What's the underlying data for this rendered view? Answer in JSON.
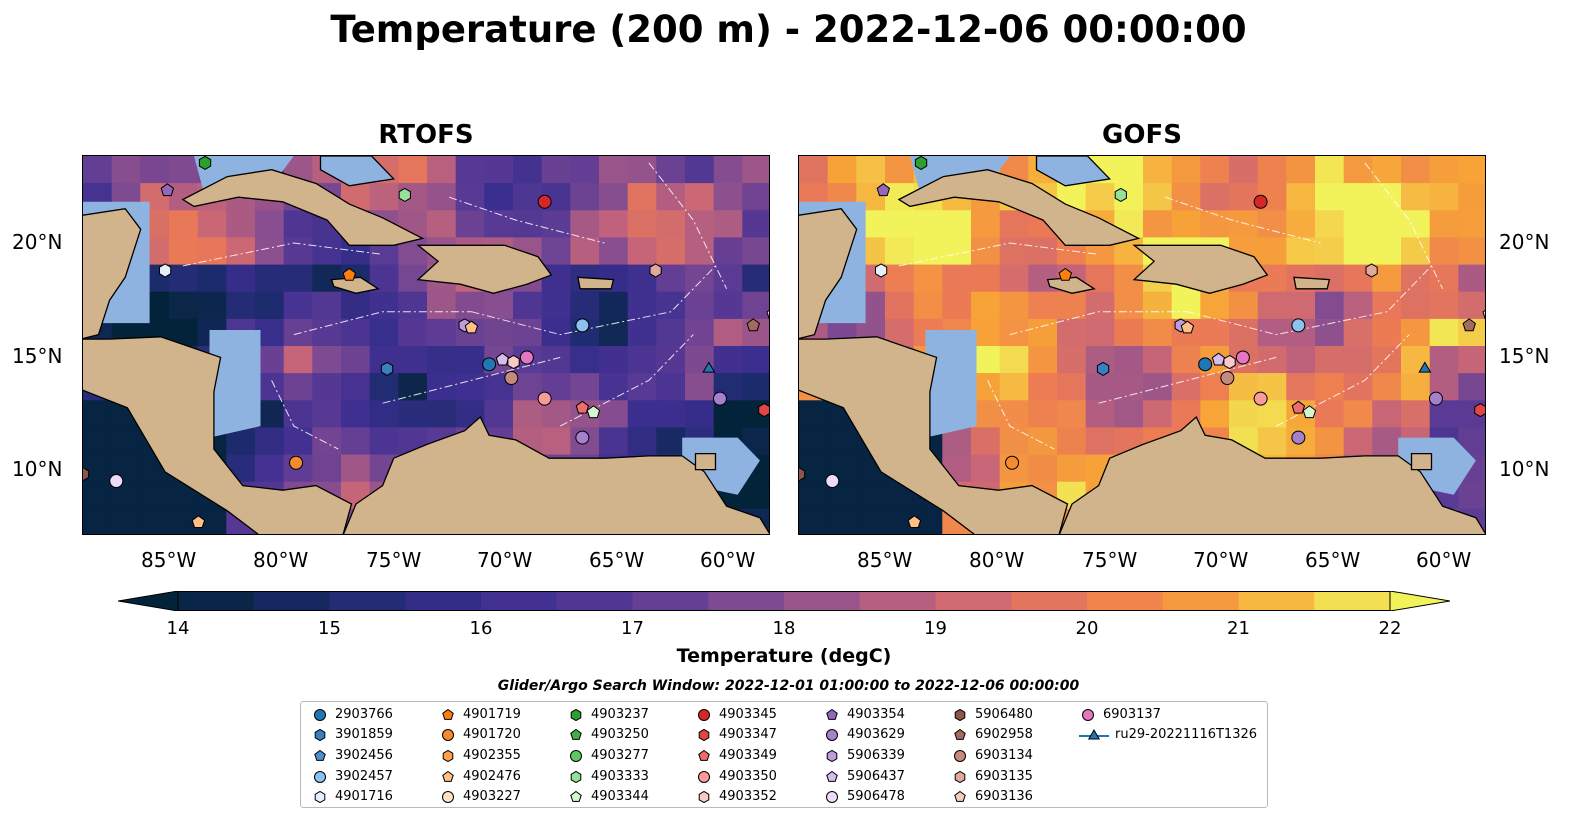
{
  "title": "Temperature (200 m) - 2022-12-06 00:00:00",
  "panels": [
    {
      "name": "RTOFS",
      "warmth": 0.35
    },
    {
      "name": "GOFS",
      "warmth": 0.75
    }
  ],
  "axes": {
    "lon_ticks": [
      "85°W",
      "80°W",
      "75°W",
      "70°W",
      "65°W",
      "60°W"
    ],
    "lat_ticks": [
      "20°N",
      "15°N",
      "10°N"
    ],
    "lon_range": [
      -89.5,
      -58.5
    ],
    "lat_range": [
      7.2,
      23.8
    ]
  },
  "colorbar": {
    "label": "Temperature (degC)",
    "ticks": [
      "14",
      "15",
      "16",
      "17",
      "18",
      "19",
      "20",
      "21",
      "22"
    ],
    "min": 14,
    "max": 22,
    "step": 0.5,
    "colormap": "thermal"
  },
  "search_window": "Glider/Argo Search Window: 2022-12-01 01:00:00 to 2022-12-06 00:00:00",
  "legend": [
    {
      "label": "2903766",
      "color": "#1f77b4",
      "marker": "circle"
    },
    {
      "label": "3901859",
      "color": "#3a7fbf",
      "marker": "hexagon"
    },
    {
      "label": "3902456",
      "color": "#4d8fd0",
      "marker": "pentagon"
    },
    {
      "label": "3902457",
      "color": "#8cc2ee",
      "marker": "circle"
    },
    {
      "label": "4901716",
      "color": "#e6f0fb",
      "marker": "hexagon"
    },
    {
      "label": "4901719",
      "color": "#ff7f0e",
      "marker": "pentagon"
    },
    {
      "label": "4901720",
      "color": "#f58b2e",
      "marker": "circle"
    },
    {
      "label": "4902355",
      "color": "#ffa04c",
      "marker": "hexagon"
    },
    {
      "label": "4902476",
      "color": "#ffbf86",
      "marker": "pentagon"
    },
    {
      "label": "4903227",
      "color": "#ffe1c6",
      "marker": "circle"
    },
    {
      "label": "4903237",
      "color": "#2ca02c",
      "marker": "hexagon"
    },
    {
      "label": "4903250",
      "color": "#3fb13f",
      "marker": "pentagon"
    },
    {
      "label": "4903277",
      "color": "#5fc95f",
      "marker": "circle"
    },
    {
      "label": "4903333",
      "color": "#97e097",
      "marker": "hexagon"
    },
    {
      "label": "4903344",
      "color": "#d3f5cf",
      "marker": "pentagon"
    },
    {
      "label": "4903345",
      "color": "#d62728",
      "marker": "circle"
    },
    {
      "label": "4903347",
      "color": "#e34546",
      "marker": "hexagon"
    },
    {
      "label": "4903349",
      "color": "#ef6d6d",
      "marker": "pentagon"
    },
    {
      "label": "4903350",
      "color": "#f79b9b",
      "marker": "circle"
    },
    {
      "label": "4903352",
      "color": "#fcc9c9",
      "marker": "hexagon"
    },
    {
      "label": "4903354",
      "color": "#9467bd",
      "marker": "pentagon"
    },
    {
      "label": "4903629",
      "color": "#a680cc",
      "marker": "circle"
    },
    {
      "label": "5906339",
      "color": "#bd9ddc",
      "marker": "hexagon"
    },
    {
      "label": "5906437",
      "color": "#d4bdee",
      "marker": "pentagon"
    },
    {
      "label": "5906478",
      "color": "#ecdcfa",
      "marker": "circle"
    },
    {
      "label": "5906480",
      "color": "#8c564b",
      "marker": "hexagon"
    },
    {
      "label": "6902958",
      "color": "#a36b5f",
      "marker": "pentagon"
    },
    {
      "label": "6903134",
      "color": "#c48a7c",
      "marker": "circle"
    },
    {
      "label": "6903135",
      "color": "#e0aa9a",
      "marker": "hexagon"
    },
    {
      "label": "6903136",
      "color": "#f4cdbd",
      "marker": "pentagon"
    },
    {
      "label": "6903137",
      "color": "#e377c2",
      "marker": "circle"
    },
    {
      "label": "ru29-20221116T1326",
      "color": "#1f77b4",
      "marker": "triangle-line"
    }
  ],
  "floats": [
    {
      "id": "4903237",
      "lon": -84.0,
      "lat": 23.5
    },
    {
      "id": "4903354",
      "lon": -85.7,
      "lat": 22.3
    },
    {
      "id": "4903333",
      "lon": -75.0,
      "lat": 22.1
    },
    {
      "id": "4903345",
      "lon": -68.7,
      "lat": 21.8
    },
    {
      "id": "4901716",
      "lon": -85.8,
      "lat": 18.8
    },
    {
      "id": "4901719",
      "lon": -77.5,
      "lat": 18.6
    },
    {
      "id": "6903135",
      "lon": -63.7,
      "lat": 18.8
    },
    {
      "id": "6902958",
      "lon": -59.3,
      "lat": 16.4
    },
    {
      "id": "6903136",
      "lon": -58.4,
      "lat": 16.9
    },
    {
      "id": "5906339",
      "lon": -72.3,
      "lat": 16.4
    },
    {
      "id": "4902476",
      "lon": -72.0,
      "lat": 16.3
    },
    {
      "id": "3902457",
      "lon": -67.0,
      "lat": 16.4
    },
    {
      "id": "3901859",
      "lon": -75.8,
      "lat": 14.5
    },
    {
      "id": "2903766",
      "lon": -71.2,
      "lat": 14.7
    },
    {
      "id": "5906437",
      "lon": -70.6,
      "lat": 14.9
    },
    {
      "id": "4903352",
      "lon": -70.1,
      "lat": 14.8
    },
    {
      "id": "6903134",
      "lon": -70.2,
      "lat": 14.1
    },
    {
      "id": "6903137",
      "lon": -69.5,
      "lat": 15.0
    },
    {
      "id": "4903350",
      "lon": -68.7,
      "lat": 13.2
    },
    {
      "id": "4903349",
      "lon": -67.0,
      "lat": 12.8
    },
    {
      "id": "4903344",
      "lon": -66.5,
      "lat": 12.6
    },
    {
      "id": "4903629",
      "lon": -67.0,
      "lat": 11.5
    },
    {
      "id": "4903629",
      "lon": -60.8,
      "lat": 13.2
    },
    {
      "id": "4903347",
      "lon": -58.8,
      "lat": 12.7
    },
    {
      "id": "4901720",
      "lon": -79.9,
      "lat": 10.4
    },
    {
      "id": "5906480",
      "lon": -89.5,
      "lat": 9.9
    },
    {
      "id": "5906478",
      "lon": -88.0,
      "lat": 9.6
    },
    {
      "id": "4902476",
      "lon": -84.3,
      "lat": 7.8
    },
    {
      "id": "ru29-20221116T1326",
      "lon": -61.3,
      "lat": 14.5
    }
  ]
}
